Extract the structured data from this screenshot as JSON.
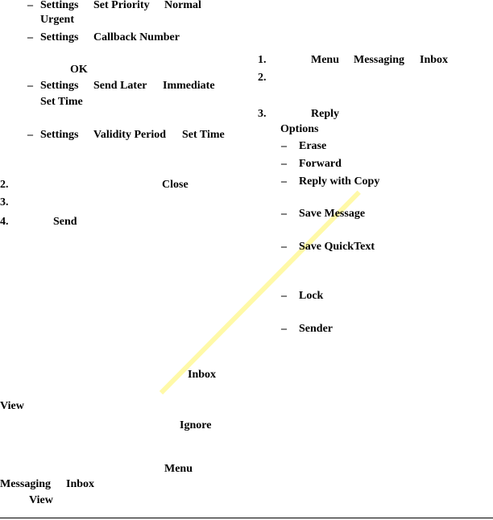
{
  "left": {
    "priority": {
      "dash": "–",
      "a": "Settings",
      "b": "Set Priority",
      "c": "Normal",
      "d": "Urgent"
    },
    "callback": {
      "dash": "–",
      "a": "Settings",
      "b": "Callback Number",
      "ok": "OK"
    },
    "send_later": {
      "dash": "–",
      "a": "Settings",
      "b": "Send Later",
      "c": "Immediate",
      "d": "Set Time"
    },
    "validity": {
      "dash": "–",
      "a": "Settings",
      "b": "Validity Period",
      "c": "Set Time"
    },
    "step2": {
      "num": "2.",
      "key": "Close"
    },
    "step3": {
      "num": "3."
    },
    "step4": {
      "num": "4.",
      "key": "Send"
    },
    "inbox": "Inbox",
    "view": "View",
    "ignore": "Ignore",
    "menu": "Menu",
    "messaging": "Messaging",
    "inbox2": "Inbox",
    "view2": "View"
  },
  "right": {
    "step1": {
      "num": "1.",
      "a": "Menu",
      "b": "Messaging",
      "c": "Inbox"
    },
    "step2": {
      "num": "2."
    },
    "step3": {
      "num": "3.",
      "a": "Reply"
    },
    "options": "Options",
    "dash": "–",
    "items": [
      "Erase",
      "Forward",
      "Reply with Copy",
      "Save Message",
      "Save QuickText",
      "Lock",
      "Sender"
    ]
  },
  "colors": {
    "highlight": "#fff9a8"
  }
}
